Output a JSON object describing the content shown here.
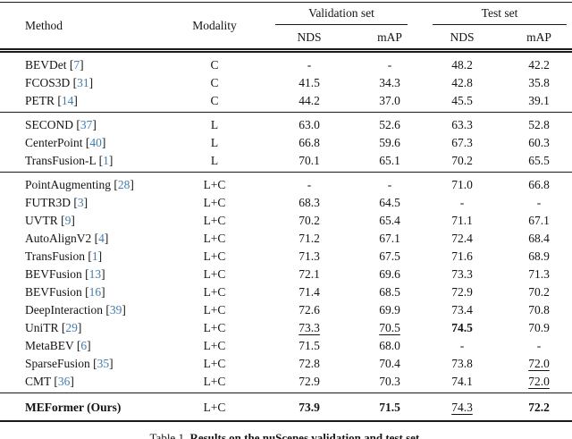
{
  "colors": {
    "citation_blue": "#3D7CC1",
    "text": "#141414",
    "background": "#ffffff"
  },
  "table": {
    "header": {
      "method": "Method",
      "modality": "Modality",
      "group_validation": "Validation set",
      "group_test": "Test set",
      "sub_val_nds": "NDS",
      "sub_val_map": "mAP",
      "sub_test_nds": "NDS",
      "sub_test_map": "mAP"
    },
    "groups": [
      {
        "name": "camera-only",
        "rows": [
          {
            "method": "BEVDet",
            "cite": "7",
            "modality": "C",
            "vals": [
              "-",
              "-",
              "48.2",
              "42.2"
            ]
          },
          {
            "method": "FCOS3D",
            "cite": "31",
            "modality": "C",
            "vals": [
              "41.5",
              "34.3",
              "42.8",
              "35.8"
            ]
          },
          {
            "method": "PETR",
            "cite": "14",
            "modality": "C",
            "vals": [
              "44.2",
              "37.0",
              "45.5",
              "39.1"
            ]
          }
        ]
      },
      {
        "name": "lidar-only",
        "rows": [
          {
            "method": "SECOND",
            "cite": "37",
            "modality": "L",
            "vals": [
              "63.0",
              "52.6",
              "63.3",
              "52.8"
            ]
          },
          {
            "method": "CenterPoint",
            "cite": "40",
            "modality": "L",
            "vals": [
              "66.8",
              "59.6",
              "67.3",
              "60.3"
            ]
          },
          {
            "method": "TransFusion-L",
            "cite": "1",
            "modality": "L",
            "vals": [
              "70.1",
              "65.1",
              "70.2",
              "65.5"
            ]
          }
        ]
      },
      {
        "name": "lidar-camera-fusion",
        "rows": [
          {
            "method": "PointAugmenting",
            "cite": "28",
            "modality": "L+C",
            "vals": [
              "-",
              "-",
              "71.0",
              "66.8"
            ]
          },
          {
            "method": "FUTR3D",
            "cite": "3",
            "modality": "L+C",
            "vals": [
              "68.3",
              "64.5",
              "-",
              "-"
            ]
          },
          {
            "method": "UVTR",
            "cite": "9",
            "modality": "L+C",
            "vals": [
              "70.2",
              "65.4",
              "71.1",
              "67.1"
            ]
          },
          {
            "method": "AutoAlignV2",
            "cite": "4",
            "modality": "L+C",
            "vals": [
              "71.2",
              "67.1",
              "72.4",
              "68.4"
            ]
          },
          {
            "method": "TransFusion",
            "cite": "1",
            "modality": "L+C",
            "vals": [
              "71.3",
              "67.5",
              "71.6",
              "68.9"
            ]
          },
          {
            "method": "BEVFusion",
            "cite": "13",
            "modality": "L+C",
            "vals": [
              "72.1",
              "69.6",
              "73.3",
              "71.3"
            ]
          },
          {
            "method": "BEVFusion",
            "cite": "16",
            "modality": "L+C",
            "vals": [
              "71.4",
              "68.5",
              "72.9",
              "70.2"
            ]
          },
          {
            "method": "DeepInteraction",
            "cite": "39",
            "modality": "L+C",
            "vals": [
              "72.6",
              "69.9",
              "73.4",
              "70.8"
            ]
          },
          {
            "method": "UniTR",
            "cite": "29",
            "modality": "L+C",
            "vals": [
              {
                "t": "73.3",
                "u": true
              },
              {
                "t": "70.5",
                "u": true
              },
              {
                "t": "74.5",
                "b": true
              },
              "70.9"
            ]
          },
          {
            "method": "MetaBEV",
            "cite": "6",
            "modality": "L+C",
            "vals": [
              "71.5",
              "68.0",
              "-",
              "-"
            ]
          },
          {
            "method": "SparseFusion",
            "cite": "35",
            "modality": "L+C",
            "vals": [
              "72.8",
              "70.4",
              "73.8",
              {
                "t": "72.0",
                "u": true
              }
            ]
          },
          {
            "method": "CMT",
            "cite": "36",
            "modality": "L+C",
            "vals": [
              "72.9",
              "70.3",
              "74.1",
              {
                "t": "72.0",
                "u": true
              }
            ]
          }
        ]
      },
      {
        "name": "ours",
        "final": true,
        "rows": [
          {
            "method": "MEFormer (Ours)",
            "cite": null,
            "bold": true,
            "modality": "L+C",
            "vals": [
              {
                "t": "73.9",
                "b": true
              },
              {
                "t": "71.5",
                "b": true
              },
              {
                "t": "74.3",
                "u": true
              },
              {
                "t": "72.2",
                "b": true
              }
            ]
          }
        ]
      }
    ],
    "caption": {
      "prefix": "Table 1. ",
      "title": "Results on the nuScenes validation and test set."
    }
  }
}
